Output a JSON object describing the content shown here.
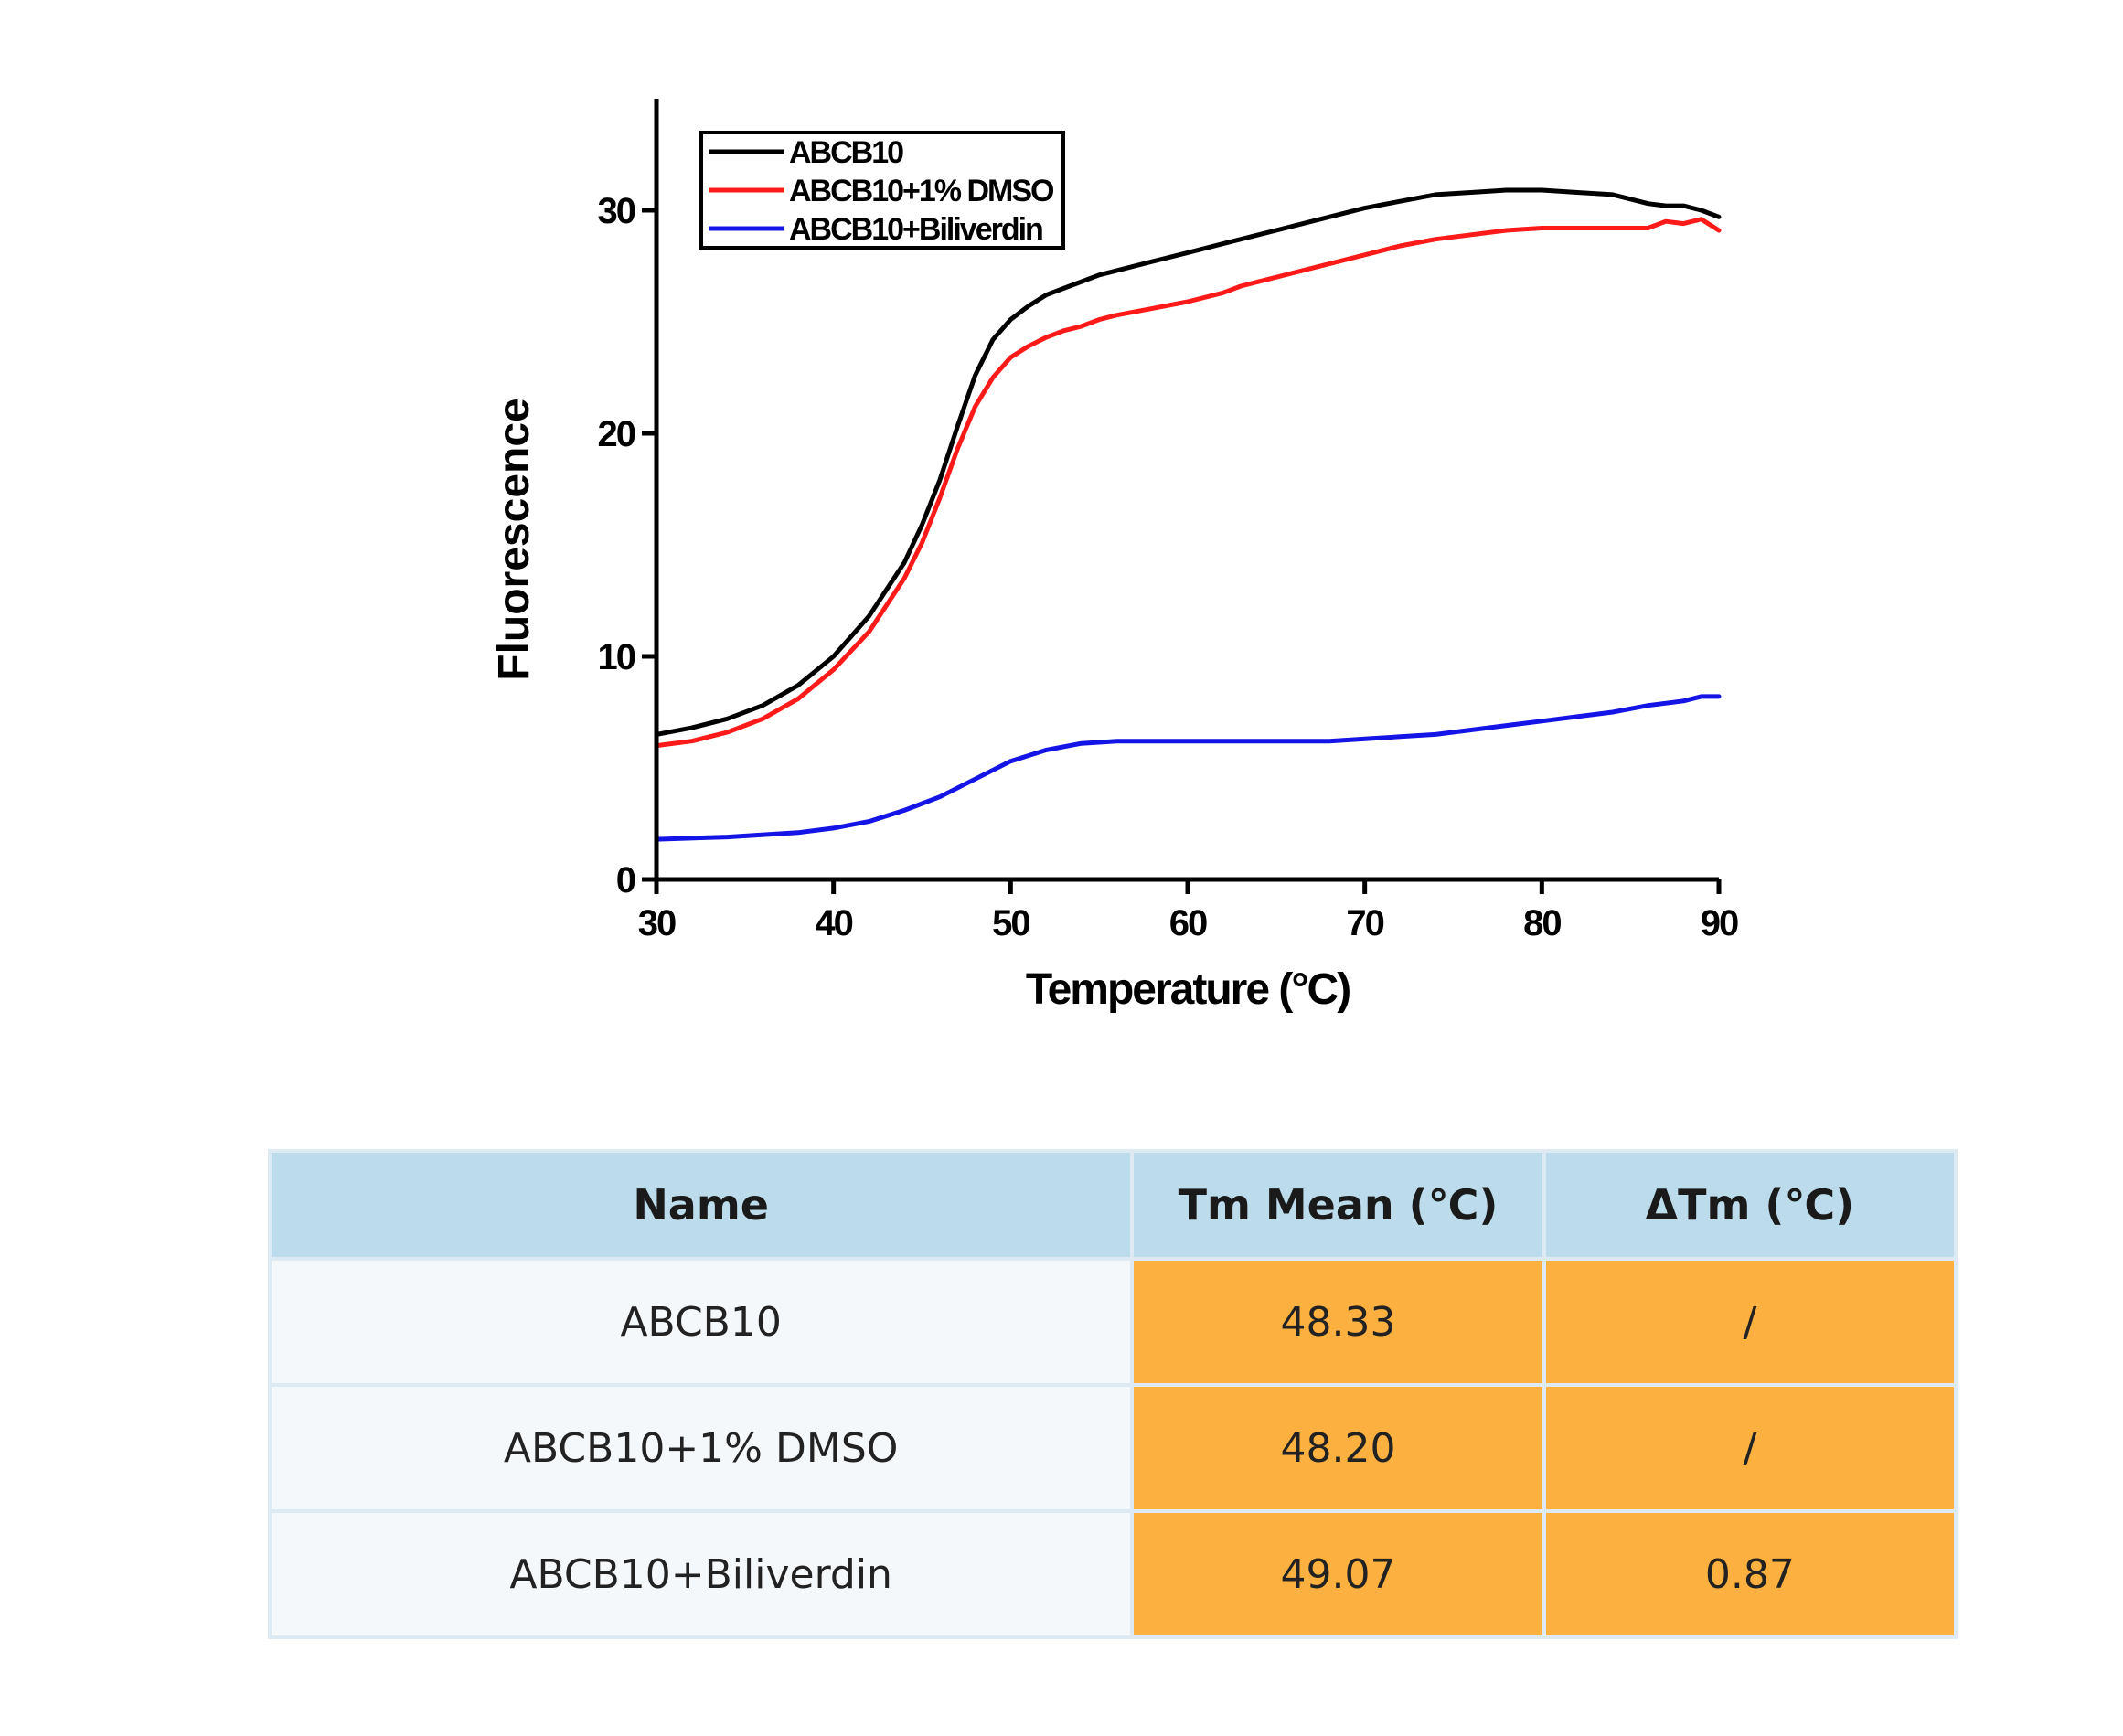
{
  "chart_data": {
    "type": "line",
    "xlabel": "Temperature (°C)",
    "ylabel": "Fluorescence",
    "xlim": [
      30,
      90
    ],
    "ylim": [
      0,
      35
    ],
    "xticks": [
      "30",
      "40",
      "50",
      "60",
      "70",
      "80",
      "90"
    ],
    "yticks": [
      "0",
      "10",
      "20",
      "30"
    ],
    "grid": false,
    "legend_position": "top-left",
    "series": [
      {
        "name": "ABCB10",
        "color": "#000000",
        "x": [
          30,
          32,
          34,
          36,
          38,
          40,
          42,
          44,
          45,
          46,
          47,
          48,
          49,
          50,
          51,
          52,
          53,
          54,
          55,
          56,
          58,
          60,
          62,
          64,
          66,
          68,
          70,
          72,
          74,
          76,
          78,
          80,
          82,
          84,
          85,
          86,
          87,
          88,
          89,
          90
        ],
        "y": [
          6.5,
          6.8,
          7.2,
          7.8,
          8.7,
          10.0,
          11.8,
          14.2,
          15.9,
          17.9,
          20.3,
          22.6,
          24.2,
          25.1,
          25.7,
          26.2,
          26.5,
          26.8,
          27.1,
          27.3,
          27.7,
          28.1,
          28.5,
          28.9,
          29.3,
          29.7,
          30.1,
          30.4,
          30.7,
          30.8,
          30.9,
          30.9,
          30.8,
          30.7,
          30.5,
          30.3,
          30.2,
          30.2,
          30.0,
          29.7
        ]
      },
      {
        "name": "ABCB10+1% DMSO",
        "color": "#ff1a1a",
        "x": [
          30,
          32,
          34,
          36,
          38,
          40,
          42,
          44,
          45,
          46,
          47,
          48,
          49,
          50,
          51,
          52,
          53,
          54,
          55,
          56,
          58,
          60,
          62,
          63,
          64,
          66,
          68,
          70,
          72,
          74,
          76,
          78,
          80,
          82,
          84,
          86,
          87,
          88,
          89,
          90
        ],
        "y": [
          6.0,
          6.2,
          6.6,
          7.2,
          8.1,
          9.4,
          11.1,
          13.5,
          15.1,
          17.1,
          19.3,
          21.2,
          22.5,
          23.4,
          23.9,
          24.3,
          24.6,
          24.8,
          25.1,
          25.3,
          25.6,
          25.9,
          26.3,
          26.6,
          26.8,
          27.2,
          27.6,
          28.0,
          28.4,
          28.7,
          28.9,
          29.1,
          29.2,
          29.2,
          29.2,
          29.2,
          29.5,
          29.4,
          29.6,
          29.1
        ]
      },
      {
        "name": "ABCB10+Biliverdin",
        "color": "#1414e6",
        "x": [
          30,
          34,
          38,
          40,
          42,
          44,
          46,
          48,
          50,
          52,
          54,
          56,
          58,
          60,
          62,
          64,
          66,
          68,
          70,
          72,
          74,
          76,
          78,
          80,
          82,
          84,
          86,
          88,
          89,
          90
        ],
        "y": [
          1.8,
          1.9,
          2.1,
          2.3,
          2.6,
          3.1,
          3.7,
          4.5,
          5.3,
          5.8,
          6.1,
          6.2,
          6.2,
          6.2,
          6.2,
          6.2,
          6.2,
          6.2,
          6.3,
          6.4,
          6.5,
          6.7,
          6.9,
          7.1,
          7.3,
          7.5,
          7.8,
          8.0,
          8.2,
          8.2
        ]
      }
    ]
  },
  "table": {
    "headers": [
      "Name",
      "Tm Mean (℃)",
      "ΔTm (℃)"
    ],
    "rows": [
      {
        "name": "ABCB10",
        "tm_mean": "48.33",
        "delta_tm": "/"
      },
      {
        "name": "ABCB10+1% DMSO",
        "tm_mean": "48.20",
        "delta_tm": "/"
      },
      {
        "name": "ABCB10+Biliverdin",
        "tm_mean": "49.07",
        "delta_tm": "0.87"
      }
    ],
    "header_color": "#bcdcec",
    "name_cell_color": "#f5f8fb",
    "value_cell_color": "#fbb040"
  }
}
